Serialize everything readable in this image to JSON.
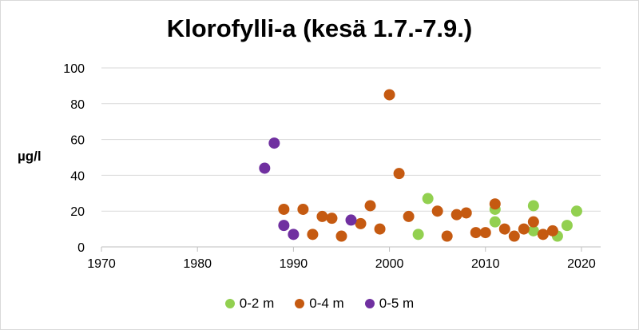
{
  "chart_data": {
    "type": "scatter",
    "title": "Klorofylli-a (kesä 1.7.-7.9.)",
    "xlabel": "",
    "ylabel": "µg/l",
    "xlim": [
      1970,
      2022
    ],
    "ylim": [
      0,
      100
    ],
    "xticks": [
      1970,
      1980,
      1990,
      2000,
      2010,
      2020
    ],
    "yticks": [
      0,
      20,
      40,
      60,
      80,
      100
    ],
    "grid": "horizontal",
    "legend_position": "bottom",
    "series": [
      {
        "name": "0-2 m",
        "color": "#92d050",
        "points": [
          [
            2003,
            7
          ],
          [
            2004,
            27
          ],
          [
            2011,
            21
          ],
          [
            2011,
            14
          ],
          [
            2015,
            23
          ],
          [
            2015,
            9
          ],
          [
            2017.5,
            6
          ],
          [
            2018.5,
            12
          ],
          [
            2019.5,
            20
          ]
        ]
      },
      {
        "name": "0-4 m",
        "color": "#c55a11",
        "points": [
          [
            1989,
            21
          ],
          [
            1991,
            21
          ],
          [
            1992,
            7
          ],
          [
            1993,
            17
          ],
          [
            1994,
            16
          ],
          [
            1995,
            6
          ],
          [
            1997,
            13
          ],
          [
            1998,
            23
          ],
          [
            1999,
            10
          ],
          [
            2000,
            85
          ],
          [
            2001,
            41
          ],
          [
            2002,
            17
          ],
          [
            2005,
            20
          ],
          [
            2006,
            6
          ],
          [
            2007,
            18
          ],
          [
            2008,
            19
          ],
          [
            2009,
            8
          ],
          [
            2010,
            8
          ],
          [
            2011,
            24
          ],
          [
            2012,
            10
          ],
          [
            2013,
            6
          ],
          [
            2014,
            10
          ],
          [
            2015,
            14
          ],
          [
            2016,
            7
          ],
          [
            2017,
            9
          ]
        ]
      },
      {
        "name": "0-5 m",
        "color": "#7030a0",
        "points": [
          [
            1987,
            44
          ],
          [
            1988,
            58
          ],
          [
            1989,
            12
          ],
          [
            1990,
            7
          ],
          [
            1996,
            15
          ]
        ]
      }
    ]
  }
}
